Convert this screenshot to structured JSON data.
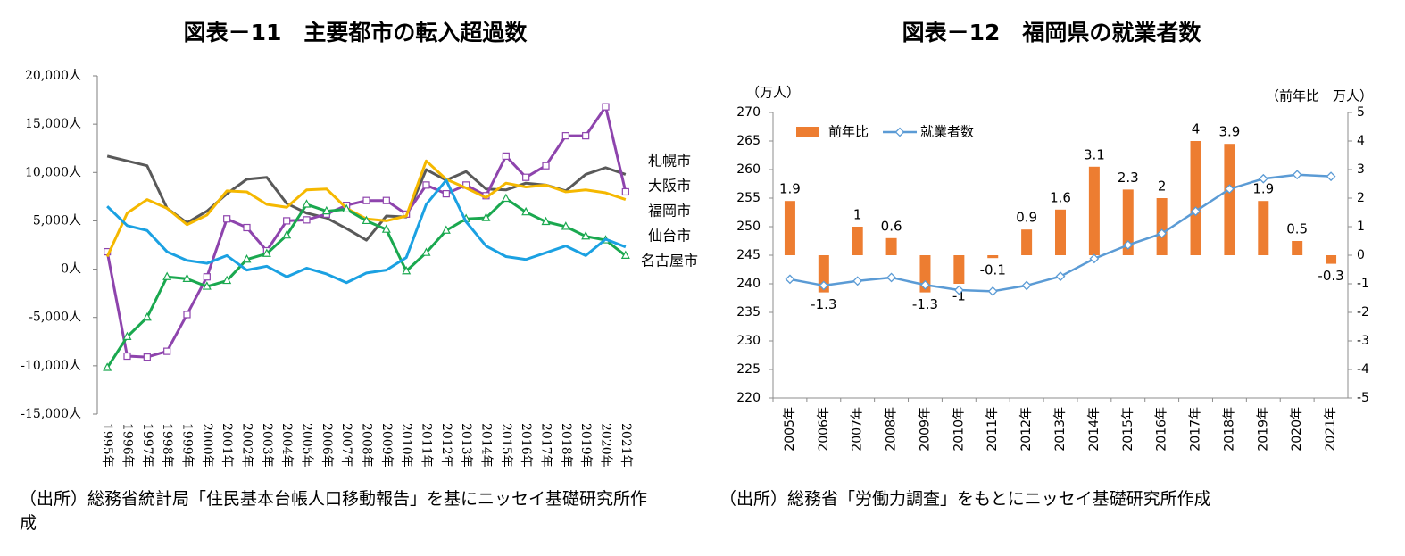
{
  "chart_data": [
    {
      "type": "line",
      "title": "図表－11　主要都市の転入超過数",
      "source": "（出所）総務省統計局「住民基本台帳人口移動報告」を基にニッセイ基礎研究所作成",
      "categories": [
        "1995年",
        "1996年",
        "1997年",
        "1998年",
        "1999年",
        "2000年",
        "2001年",
        "2002年",
        "2003年",
        "2004年",
        "2005年",
        "2006年",
        "2007年",
        "2008年",
        "2009年",
        "2010年",
        "2011年",
        "2012年",
        "2013年",
        "2014年",
        "2015年",
        "2016年",
        "2017年",
        "2018年",
        "2019年",
        "2020年",
        "2021年"
      ],
      "ylim": [
        -15000,
        20000
      ],
      "yticks": [
        {
          "value": -15000,
          "label": "-15,000人"
        },
        {
          "value": -10000,
          "label": "-10,000人"
        },
        {
          "value": -5000,
          "label": "-5,000人"
        },
        {
          "value": 0,
          "label": "0人"
        },
        {
          "value": 5000,
          "label": "5,000人"
        },
        {
          "value": 10000,
          "label": "10,000人"
        },
        {
          "value": 15000,
          "label": "15,000人"
        },
        {
          "value": 20000,
          "label": "20,000人"
        }
      ],
      "series": [
        {
          "name": "札幌市",
          "color": "#595959",
          "marker": "none",
          "values": [
            11700,
            11200,
            10700,
            6300,
            4800,
            6000,
            7800,
            9300,
            9500,
            6800,
            5800,
            5300,
            4200,
            3000,
            5500,
            5400,
            10300,
            9200,
            10100,
            8300,
            8200,
            8900,
            8700,
            8100,
            9800,
            10500,
            9800
          ]
        },
        {
          "name": "大阪市",
          "color": "#8e44ad",
          "marker": "square",
          "values": [
            1800,
            -9000,
            -9100,
            -8500,
            -4700,
            -800,
            5200,
            4300,
            1900,
            5000,
            5100,
            5700,
            6600,
            7100,
            7100,
            5700,
            8700,
            7800,
            8700,
            7600,
            11700,
            9500,
            10700,
            13800,
            13800,
            16800,
            8000
          ]
        },
        {
          "name": "福岡市",
          "color": "#f5b800",
          "marker": "none",
          "values": [
            1300,
            5800,
            7200,
            6300,
            4600,
            5600,
            8100,
            8000,
            6700,
            6400,
            8200,
            8300,
            6300,
            5200,
            5000,
            5500,
            11200,
            9300,
            8400,
            7400,
            8900,
            8500,
            8700,
            8000,
            8200,
            7900,
            7200
          ]
        },
        {
          "name": "名古屋市",
          "color": "#1aa84f",
          "marker": "triangle",
          "values": [
            -10200,
            -7000,
            -5000,
            -800,
            -1000,
            -1800,
            -1200,
            1000,
            1600,
            3500,
            6700,
            6000,
            6200,
            5000,
            4100,
            -200,
            1700,
            4000,
            5200,
            5300,
            7300,
            5900,
            4900,
            4400,
            3400,
            3000,
            1400
          ]
        },
        {
          "name": "仙台市",
          "color": "#1ba1e2",
          "marker": "none",
          "values": [
            6500,
            4500,
            4000,
            1800,
            900,
            600,
            1400,
            -100,
            300,
            -800,
            100,
            -500,
            -1400,
            -400,
            -100,
            1200,
            6700,
            9200,
            4900,
            2400,
            1300,
            1000,
            1700,
            2400,
            1400,
            3100,
            2300
          ]
        }
      ]
    },
    {
      "type": "combo",
      "title": "図表－12　福岡県の就業者数",
      "source": "（出所）総務省「労働力調査」をもとにニッセイ基礎研究所作成",
      "y_label": "（万人）",
      "y2_label": "（前年比　万人）",
      "categories": [
        "2005年",
        "2006年",
        "2007年",
        "2008年",
        "2009年",
        "2010年",
        "2011年",
        "2012年",
        "2013年",
        "2014年",
        "2015年",
        "2016年",
        "2017年",
        "2018年",
        "2019年",
        "2020年",
        "2021年"
      ],
      "ylim": [
        220,
        270
      ],
      "yticks": [
        220,
        225,
        230,
        235,
        240,
        245,
        250,
        255,
        260,
        265,
        270
      ],
      "y2lim": [
        -5,
        5
      ],
      "y2ticks": [
        -5,
        -4,
        -3,
        -2,
        -1,
        0,
        1,
        2,
        3,
        4,
        5
      ],
      "series": [
        {
          "name": "前年比",
          "type": "bar",
          "axis": "y2",
          "color": "#ed7d31",
          "label_color": "#d42020",
          "values": [
            1.9,
            -1.3,
            1,
            0.6,
            -1.3,
            -1,
            -0.1,
            0.9,
            1.6,
            3.1,
            2.3,
            2,
            4,
            3.9,
            1.9,
            0.5,
            -0.3
          ]
        },
        {
          "name": "就業者数",
          "type": "line",
          "color": "#5b9bd5",
          "values": [
            240.8,
            239.7,
            240.5,
            241.1,
            239.8,
            238.9,
            238.7,
            239.7,
            241.3,
            244.4,
            246.8,
            248.8,
            252.7,
            256.6,
            258.4,
            259.1,
            258.8
          ]
        }
      ]
    }
  ]
}
